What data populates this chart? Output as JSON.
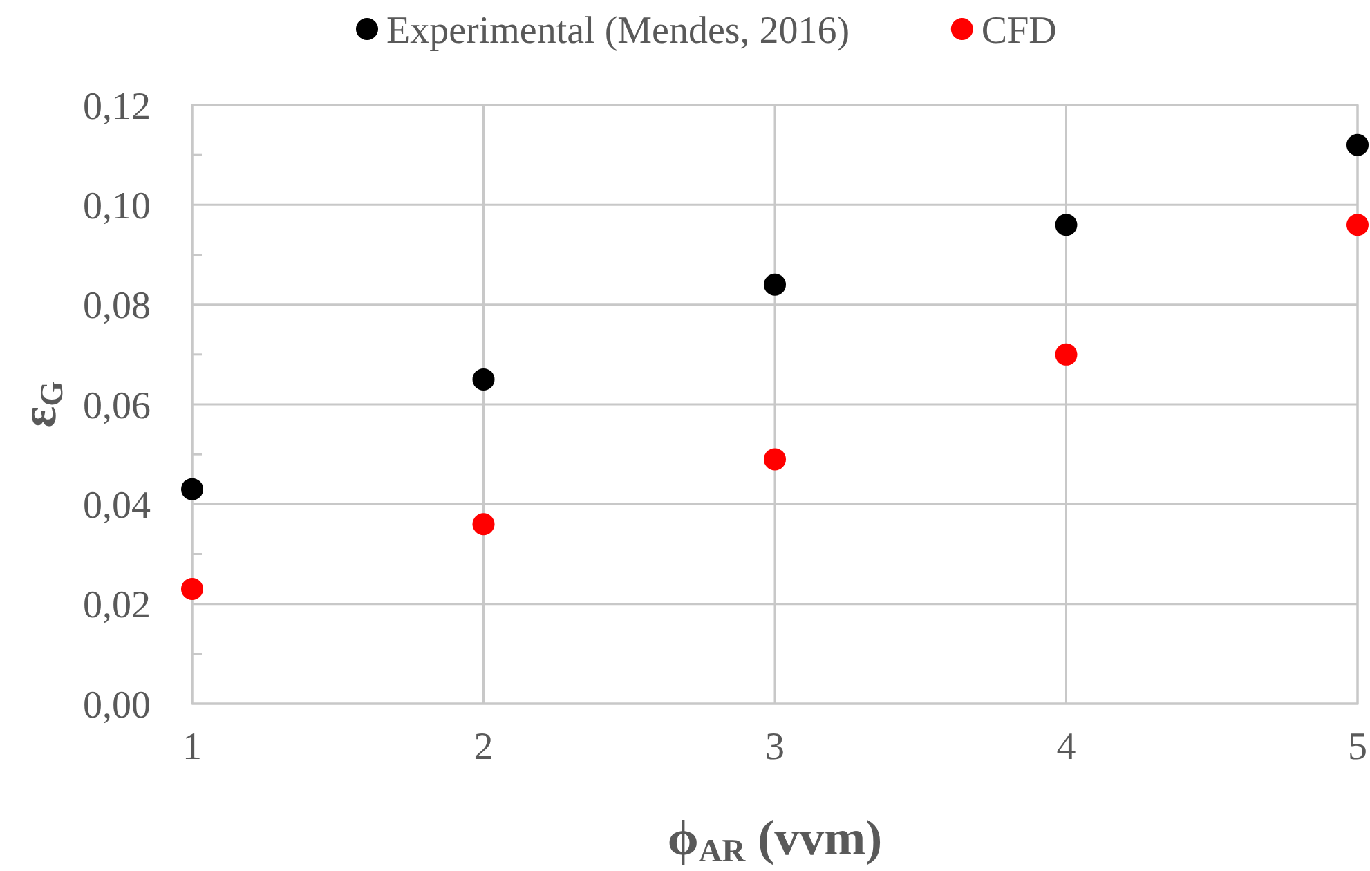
{
  "chart_data": {
    "type": "scatter",
    "xlabel": "ϕ$_{AR}$ (vvm)",
    "ylabel": "ε$_{G}$",
    "x": [
      1,
      2,
      3,
      4,
      5
    ],
    "series": [
      {
        "name": "Experimental (Mendes, 2016)",
        "color": "#000000",
        "values": [
          0.043,
          0.065,
          0.084,
          0.096,
          0.112
        ]
      },
      {
        "name": "CFD",
        "color": "#ff0000",
        "values": [
          0.023,
          0.036,
          0.049,
          0.07,
          0.096
        ]
      }
    ],
    "xlim": [
      1,
      5
    ],
    "xticks": [
      1,
      2,
      3,
      4,
      5
    ],
    "ylim": [
      0,
      0.12
    ],
    "yticks": [
      {
        "value": 0,
        "label": "0,00"
      },
      {
        "value": 0.01,
        "label": null
      },
      {
        "value": 0.02,
        "label": "0,02"
      },
      {
        "value": 0.03,
        "label": null
      },
      {
        "value": 0.04,
        "label": "0,04"
      },
      {
        "value": 0.05,
        "label": null
      },
      {
        "value": 0.06,
        "label": "0,06"
      },
      {
        "value": 0.07,
        "label": null
      },
      {
        "value": 0.08,
        "label": "0,08"
      },
      {
        "value": 0.09,
        "label": null
      },
      {
        "value": 0.1,
        "label": "0,10"
      },
      {
        "value": 0.11,
        "label": null
      },
      {
        "value": 0.12,
        "label": "0,12"
      }
    ],
    "grid": true,
    "legend": "top",
    "marker": "circle"
  }
}
